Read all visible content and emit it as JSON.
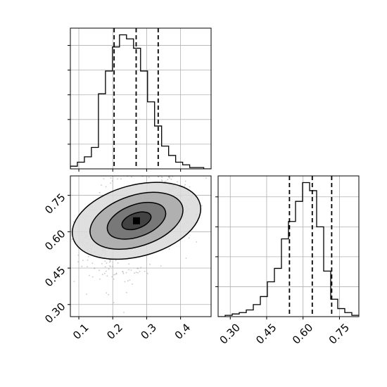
{
  "chart_data": {
    "type": "corner",
    "grid": true,
    "quantile_lines": "dashed",
    "parameters": [
      {
        "ticks": [
          0.1,
          0.2,
          0.3,
          0.4
        ],
        "tick_labels": [
          "0.1",
          "0.2",
          "0.3",
          "0.4"
        ],
        "range": [
          0.075,
          0.49
        ],
        "quantiles": [
          0.204,
          0.269,
          0.334
        ],
        "histogram": {
          "bins_start": 0.075,
          "bin_width": 0.0207,
          "counts": [
            2,
            5,
            9,
            16,
            56,
            73,
            91,
            100,
            97,
            90,
            73,
            50,
            32,
            17,
            10,
            5,
            3,
            1,
            1,
            0
          ]
        }
      },
      {
        "ticks": [
          0.3,
          0.45,
          0.6,
          0.75
        ],
        "tick_labels": [
          "0.30",
          "0.45",
          "0.60",
          "0.75"
        ],
        "range": [
          0.25,
          0.83
        ],
        "quantiles": [
          0.544,
          0.638,
          0.718
        ],
        "histogram": {
          "bins_start": 0.25,
          "bin_width": 0.029,
          "counts": [
            0,
            1,
            2,
            3,
            5,
            9,
            15,
            26,
            36,
            58,
            71,
            86,
            100,
            94,
            67,
            34,
            13,
            6,
            3,
            1
          ]
        }
      }
    ],
    "joint": {
      "center": [
        0.27,
        0.645
      ],
      "contour_levels": [
        {
          "rx": 0.045,
          "ry": 0.03,
          "rot": -20
        },
        {
          "rx": 0.09,
          "ry": 0.063,
          "rot": -20
        },
        {
          "rx": 0.142,
          "ry": 0.1,
          "rot": -18
        },
        {
          "rx": 0.194,
          "ry": 0.14,
          "rot": -15
        }
      ]
    }
  }
}
